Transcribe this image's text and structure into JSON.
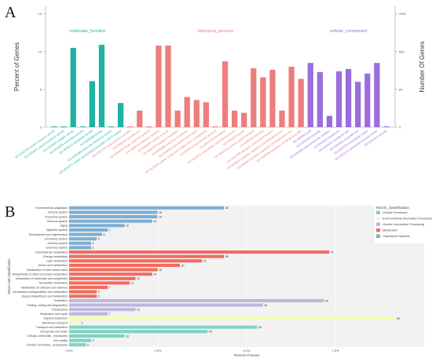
{
  "chart_data": [
    {
      "panel": "A",
      "type": "bar",
      "title": "",
      "ylabel": "Percent of Genes",
      "y2label": "Number Of Genes",
      "ylim": [
        0,
        16
      ],
      "yticks": [
        "0",
        "5",
        "10",
        "15"
      ],
      "y2ticks": [
        "0",
        "89",
        "594",
        "2941"
      ],
      "groups": [
        {
          "name": "molecular_function",
          "color": "#1fb3a4",
          "categories": [
            "GO:0045735-nutrient reservoir activity",
            "GO:0004871-signal transducer activity",
            "GO:0003824-catalytic activity",
            "GO:0016209-antioxidant activity",
            "GO:0005215-transporter activity",
            "GO:0005488-binding",
            "GO:0060089-molecular transducer activity",
            "GO:0001071-nucleic acid binding transcription factor activity"
          ],
          "values": [
            0.1,
            0.1,
            10.5,
            0.1,
            6.1,
            10.9,
            0.1,
            3.2
          ]
        },
        {
          "name": "biological_process",
          "color": "#ee7d7d",
          "categories": [
            "GO:0051704-multi-organism process",
            "GO:0000003-reproduction",
            "GO:0044699-single-organism process",
            "GO:0008152-metabolic process",
            "GO:0009987-cellular process",
            "GO:0065007-biological regulation",
            "GO:0050896-response to stimulus",
            "GO:0032502-developmental process",
            "GO:0071840-cellular component organization or biogenesis",
            "GO:0022414-reproductive process",
            "GO:0051179-localization",
            "GO:0032501-multicellular organismal process",
            "GO:0040007-growth",
            "GO:0002376-immune system process",
            "GO:0023052-signaling",
            "GO:0050789-regulation of biological process",
            "GO:0048519-negative regulation of biological process",
            "GO:0048518-positive regulation of biological process",
            "GO:0065008-regulation of biological quality"
          ],
          "values": [
            0.1,
            2.2,
            0.1,
            10.8,
            10.8,
            2.2,
            4.0,
            3.6,
            3.3,
            0.1,
            8.7,
            2.2,
            1.9,
            7.8,
            6.6,
            7.6,
            2.2,
            8.0,
            6.4
          ]
        },
        {
          "name": "cellular_component",
          "color": "#9a6edb",
          "categories": [
            "GO:0005623-cell",
            "GO:0043226-organelle",
            "GO:0032991-macromolecular complex",
            "GO:0016020-membrane",
            "GO:0044425-membrane part",
            "GO:0044422-organelle part",
            "GO:0005576-extracellular region",
            "GO:0031974-membrane-enclosed lumen",
            "GO:0044464-cell part"
          ],
          "values": [
            8.5,
            7.3,
            1.5,
            7.4,
            7.7,
            6.0,
            7.1,
            8.5,
            0.1
          ]
        }
      ]
    },
    {
      "panel": "B",
      "type": "bar",
      "orientation": "horizontal",
      "title": "",
      "ylabel": "KEGG sub-classification",
      "xlabel": "Percent of Genes",
      "xlim": [
        0,
        10
      ],
      "xticks": [
        "0.0%",
        "2.5%",
        "5.0%",
        "7.5%"
      ],
      "legend": {
        "title": "KEGG_classification",
        "position": "top-right",
        "entries": [
          {
            "name": "Cellular Processes",
            "color": "#7dd3c4"
          },
          {
            "name": "Environmental Information Processing",
            "color": "#fbfbb0"
          },
          {
            "name": "Genetic Information Processing",
            "color": "#bdb7dc"
          },
          {
            "name": "Metabolism",
            "color": "#f26b5e"
          },
          {
            "name": "Organismal Systems",
            "color": "#7eaed3"
          }
        ]
      },
      "series_colors": {
        "Organismal Systems": "#7eaed3",
        "Metabolism": "#f26b5e",
        "Genetic Information Processing": "#bdb7dc",
        "Environmental Information Processing": "#fbfbb0",
        "Cellular Processes": "#7dd3c4"
      },
      "rows": [
        {
          "label": "Environmental adaptation",
          "value": 4.36,
          "count": 28,
          "class": "Organismal Systems"
        },
        {
          "label": "Immune system",
          "value": 2.49,
          "count": 16,
          "class": "Organismal Systems"
        },
        {
          "label": "Endocrine system",
          "value": 2.49,
          "count": 16,
          "class": "Organismal Systems"
        },
        {
          "label": "Nervous system",
          "value": 2.34,
          "count": 15,
          "class": "Organismal Systems"
        },
        {
          "label": "Aging",
          "value": 1.56,
          "count": 10,
          "class": "Organismal Systems"
        },
        {
          "label": "Digestive system",
          "value": 1.09,
          "count": 7,
          "class": "Organismal Systems"
        },
        {
          "label": "Development and regeneration",
          "value": 0.93,
          "count": 6,
          "class": "Organismal Systems"
        },
        {
          "label": "Circulatory system",
          "value": 0.78,
          "count": 5,
          "class": "Organismal Systems"
        },
        {
          "label": "Sensory system",
          "value": 0.62,
          "count": 4,
          "class": "Organismal Systems"
        },
        {
          "label": "Excretory system",
          "value": 0.62,
          "count": 4,
          "class": "Organismal Systems"
        },
        {
          "label": "Carbohydrate metabolism",
          "value": 7.33,
          "count": 47,
          "class": "Metabolism"
        },
        {
          "label": "Energy metabolism",
          "value": 4.36,
          "count": 28,
          "class": "Metabolism"
        },
        {
          "label": "Lipid metabolism",
          "value": 3.74,
          "count": 24,
          "class": "Metabolism"
        },
        {
          "label": "Amino acid metabolism",
          "value": 3.12,
          "count": 20,
          "class": "Metabolism"
        },
        {
          "label": "Metabolism of other amino acids",
          "value": 2.49,
          "count": 16,
          "class": "Metabolism"
        },
        {
          "label": "Biosynthesis of other secondary metabolites",
          "value": 2.34,
          "count": 15,
          "class": "Metabolism"
        },
        {
          "label": "Metabolism of terpenoids and polyketides",
          "value": 1.87,
          "count": 12,
          "class": "Metabolism"
        },
        {
          "label": "Nucleotide metabolism",
          "value": 1.71,
          "count": 11,
          "class": "Metabolism"
        },
        {
          "label": "Metabolism of cofactors and vitamins",
          "value": 1.09,
          "count": 7,
          "class": "Metabolism"
        },
        {
          "label": "Xenobiotics biodegradation and metabolism",
          "value": 0.78,
          "count": 5,
          "class": "Metabolism"
        },
        {
          "label": "Glycan biosynthesis and metabolism",
          "value": 0.78,
          "count": 5,
          "class": "Metabolism"
        },
        {
          "label": "Translation",
          "value": 7.18,
          "count": 46,
          "class": "Genetic Information Processing"
        },
        {
          "label": "Folding, sorting and degradation",
          "value": 5.46,
          "count": 35,
          "class": "Genetic Information Processing"
        },
        {
          "label": "Transcription",
          "value": 1.87,
          "count": 12,
          "class": "Genetic Information Processing"
        },
        {
          "label": "Replication and repair",
          "value": 1.09,
          "count": 7,
          "class": "Genetic Information Processing"
        },
        {
          "label": "Signal transduction",
          "value": 9.2,
          "count": 59,
          "class": "Environmental Information Processing"
        },
        {
          "label": "Membrane transport",
          "value": 0.31,
          "count": 2,
          "class": "Environmental Information Processing"
        },
        {
          "label": "Transport and catabolism",
          "value": 5.3,
          "count": 34,
          "class": "Cellular Processes"
        },
        {
          "label": "Cell growth and death",
          "value": 3.9,
          "count": 25,
          "class": "Cellular Processes"
        },
        {
          "label": "Cellular community - eukaryotes",
          "value": 1.56,
          "count": 10,
          "class": "Cellular Processes"
        },
        {
          "label": "Cell motility",
          "value": 0.62,
          "count": 4,
          "class": "Cellular Processes"
        },
        {
          "label": "Cellular community - prokaryotes",
          "value": 0.47,
          "count": 3,
          "class": "Cellular Processes"
        }
      ]
    }
  ]
}
